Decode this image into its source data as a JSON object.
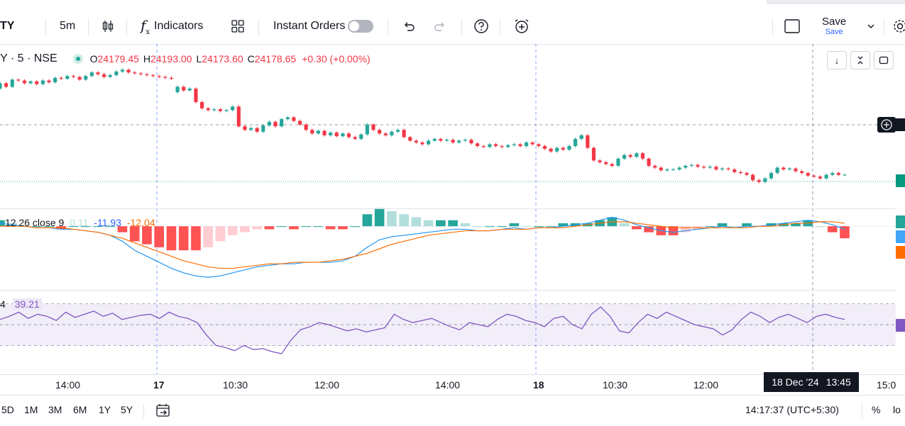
{
  "toolbar": {
    "symbol": "TY",
    "interval": "5m",
    "indicators": "Indicators",
    "instant_orders": "Instant Orders",
    "save": "Save",
    "save_sub": "Save"
  },
  "legend": {
    "symbol": "Y · 5 · NSE",
    "o_lbl": "O",
    "o_val": "24179.45",
    "h_lbl": "H",
    "h_val": "24193.00",
    "l_lbl": "L",
    "l_val": "24173.60",
    "c_lbl": "C",
    "c_val": "24178.65",
    "change": "+0.30 (+0.00%)"
  },
  "macd_legend": {
    "label": "12 26 close 9",
    "hist": "0.11",
    "macd": "-11.93",
    "signal": "-12.04"
  },
  "rsi_legend": {
    "prefix": "4",
    "value": "39.21"
  },
  "xaxis": {
    "labels": [
      "14:00",
      "17",
      "10:30",
      "12:00",
      "14:00",
      "18",
      "10:30",
      "12:00"
    ],
    "cursor_label": "18 Dec '24",
    "cursor_time": "13:45",
    "right_label": "15:0"
  },
  "bottom": {
    "ranges": [
      "5D",
      "1M",
      "3M",
      "6M",
      "1Y",
      "5Y"
    ],
    "clock": "14:17:37 (UTC+5:30)",
    "pct": "%",
    "log": "lo"
  },
  "colors": {
    "up": "#26a69a",
    "down": "#f23645",
    "macd": "#2962ff",
    "signal": "#ff6d00",
    "rsi": "#7e57c2"
  },
  "chart_data": {
    "type": "candlestick",
    "price": {
      "series": [
        {
          "o": 24170,
          "c": 24176
        },
        {
          "o": 24176,
          "c": 24172
        },
        {
          "o": 24172,
          "c": 24180
        },
        {
          "o": 24180,
          "c": 24179
        },
        {
          "o": 24179,
          "c": 24176
        },
        {
          "o": 24176,
          "c": 24178
        },
        {
          "o": 24178,
          "c": 24175
        },
        {
          "o": 24175,
          "c": 24179
        },
        {
          "o": 24179,
          "c": 24177
        },
        {
          "o": 24177,
          "c": 24182
        },
        {
          "o": 24182,
          "c": 24181
        },
        {
          "o": 24181,
          "c": 24184
        },
        {
          "o": 24184,
          "c": 24183
        },
        {
          "o": 24183,
          "c": 24180
        },
        {
          "o": 24180,
          "c": 24184
        },
        {
          "o": 24184,
          "c": 24188
        },
        {
          "o": 24188,
          "c": 24186
        },
        {
          "o": 24186,
          "c": 24183
        },
        {
          "o": 24183,
          "c": 24185
        },
        {
          "o": 24185,
          "c": 24189
        },
        {
          "o": 24189,
          "c": 24191
        },
        {
          "o": 24191,
          "c": 24188
        },
        {
          "o": 24188,
          "c": 24187
        },
        {
          "o": 24187,
          "c": 24186
        },
        {
          "o": 24186,
          "c": 24185
        },
        {
          "o": 24185,
          "c": 24184
        },
        {
          "o": 24184,
          "c": 24183
        },
        {
          "o": 24183,
          "c": 24182
        },
        {
          "o": 24182,
          "c": 24181
        },
        {
          "o": 24166,
          "c": 24172
        },
        {
          "o": 24172,
          "c": 24168
        },
        {
          "o": 24168,
          "c": 24170
        },
        {
          "o": 24170,
          "c": 24155
        },
        {
          "o": 24155,
          "c": 24148
        },
        {
          "o": 24148,
          "c": 24146
        },
        {
          "o": 24146,
          "c": 24147
        },
        {
          "o": 24147,
          "c": 24145
        },
        {
          "o": 24145,
          "c": 24146
        },
        {
          "o": 24146,
          "c": 24150
        },
        {
          "o": 24150,
          "c": 24128
        },
        {
          "o": 24128,
          "c": 24124
        },
        {
          "o": 24124,
          "c": 24126
        },
        {
          "o": 24126,
          "c": 24122
        },
        {
          "o": 24122,
          "c": 24129
        },
        {
          "o": 24129,
          "c": 24133
        },
        {
          "o": 24133,
          "c": 24128
        },
        {
          "o": 24128,
          "c": 24136
        },
        {
          "o": 24136,
          "c": 24138
        },
        {
          "o": 24138,
          "c": 24134
        },
        {
          "o": 24134,
          "c": 24130
        },
        {
          "o": 24130,
          "c": 24124
        },
        {
          "o": 24124,
          "c": 24120
        },
        {
          "o": 24120,
          "c": 24123
        },
        {
          "o": 24123,
          "c": 24118
        },
        {
          "o": 24118,
          "c": 24121
        },
        {
          "o": 24121,
          "c": 24117
        },
        {
          "o": 24117,
          "c": 24120
        },
        {
          "o": 24120,
          "c": 24116
        },
        {
          "o": 24116,
          "c": 24114
        },
        {
          "o": 24114,
          "c": 24119
        },
        {
          "o": 24119,
          "c": 24130
        },
        {
          "o": 24130,
          "c": 24124
        },
        {
          "o": 24124,
          "c": 24120
        },
        {
          "o": 24120,
          "c": 24118
        },
        {
          "o": 24118,
          "c": 24122
        },
        {
          "o": 24122,
          "c": 24124
        },
        {
          "o": 24124,
          "c": 24116
        },
        {
          "o": 24116,
          "c": 24112
        },
        {
          "o": 24112,
          "c": 24110
        },
        {
          "o": 24110,
          "c": 24108
        },
        {
          "o": 24108,
          "c": 24112
        },
        {
          "o": 24112,
          "c": 24114
        },
        {
          "o": 24114,
          "c": 24112
        },
        {
          "o": 24112,
          "c": 24113
        },
        {
          "o": 24113,
          "c": 24110
        },
        {
          "o": 24110,
          "c": 24112
        },
        {
          "o": 24112,
          "c": 24113
        },
        {
          "o": 24113,
          "c": 24109
        },
        {
          "o": 24109,
          "c": 24106
        },
        {
          "o": 24106,
          "c": 24105
        },
        {
          "o": 24105,
          "c": 24108
        },
        {
          "o": 24108,
          "c": 24106
        },
        {
          "o": 24106,
          "c": 24105
        },
        {
          "o": 24105,
          "c": 24107
        },
        {
          "o": 24107,
          "c": 24108
        },
        {
          "o": 24108,
          "c": 24106
        },
        {
          "o": 24106,
          "c": 24110
        },
        {
          "o": 24110,
          "c": 24108
        },
        {
          "o": 24108,
          "c": 24106
        },
        {
          "o": 24106,
          "c": 24103
        },
        {
          "o": 24103,
          "c": 24100
        },
        {
          "o": 24100,
          "c": 24104
        },
        {
          "o": 24104,
          "c": 24102
        },
        {
          "o": 24102,
          "c": 24106
        },
        {
          "o": 24106,
          "c": 24114
        },
        {
          "o": 24114,
          "c": 24118
        },
        {
          "o": 24118,
          "c": 24104
        },
        {
          "o": 24104,
          "c": 24090
        },
        {
          "o": 24090,
          "c": 24088
        },
        {
          "o": 24088,
          "c": 24086
        },
        {
          "o": 24086,
          "c": 24084
        },
        {
          "o": 24084,
          "c": 24092
        },
        {
          "o": 24092,
          "c": 24096
        },
        {
          "o": 24096,
          "c": 24094
        },
        {
          "o": 24094,
          "c": 24098
        },
        {
          "o": 24098,
          "c": 24092
        },
        {
          "o": 24092,
          "c": 24084
        },
        {
          "o": 24084,
          "c": 24082
        },
        {
          "o": 24082,
          "c": 24079
        },
        {
          "o": 24079,
          "c": 24080
        },
        {
          "o": 24080,
          "c": 24080
        },
        {
          "o": 24080,
          "c": 24082
        },
        {
          "o": 24082,
          "c": 24084
        },
        {
          "o": 24084,
          "c": 24085
        },
        {
          "o": 24085,
          "c": 24083
        },
        {
          "o": 24083,
          "c": 24082
        },
        {
          "o": 24082,
          "c": 24083
        },
        {
          "o": 24083,
          "c": 24080
        },
        {
          "o": 24080,
          "c": 24081
        },
        {
          "o": 24081,
          "c": 24080
        },
        {
          "o": 24080,
          "c": 24077
        },
        {
          "o": 24077,
          "c": 24076
        },
        {
          "o": 24076,
          "c": 24074
        },
        {
          "o": 24074,
          "c": 24068
        },
        {
          "o": 24068,
          "c": 24066
        },
        {
          "o": 24066,
          "c": 24070
        },
        {
          "o": 24070,
          "c": 24076
        },
        {
          "o": 24076,
          "c": 24082
        },
        {
          "o": 24082,
          "c": 24080
        },
        {
          "o": 24080,
          "c": 24081
        },
        {
          "o": 24081,
          "c": 24078
        },
        {
          "o": 24078,
          "c": 24076
        },
        {
          "o": 24076,
          "c": 24073
        },
        {
          "o": 24073,
          "c": 24072
        },
        {
          "o": 24072,
          "c": 24070
        },
        {
          "o": 24070,
          "c": 24074
        },
        {
          "o": 24074,
          "c": 24076
        },
        {
          "o": 24076,
          "c": 24074
        },
        {
          "o": 24074,
          "c": 24074
        }
      ],
      "ylim": [
        24050,
        24200
      ]
    },
    "macd": {
      "macd": [
        2,
        1,
        0,
        -1,
        -1,
        -2,
        -2,
        -3,
        -4,
        -6,
        -10,
        -16,
        -20,
        -24,
        -28,
        -31,
        -33,
        -34,
        -33,
        -31,
        -29,
        -27,
        -26,
        -25,
        -25,
        -24,
        -24,
        -24,
        -23,
        -20,
        -14,
        -9,
        -7,
        -6,
        -5,
        -4,
        -3,
        -2,
        -2,
        -3,
        -3,
        -2,
        -1,
        -2,
        -1,
        -1,
        0,
        1,
        2,
        4,
        6,
        4,
        1,
        -1,
        -3,
        -4,
        -3,
        -2,
        -1,
        0,
        -1,
        0,
        0,
        1,
        2,
        3,
        4,
        3,
        1,
        -2
      ],
      "signal": [
        0,
        0,
        0,
        -1,
        -1,
        -1,
        -2,
        -3,
        -4,
        -6,
        -8,
        -11,
        -14,
        -17,
        -20,
        -23,
        -25,
        -27,
        -28,
        -28,
        -27,
        -26,
        -25,
        -25,
        -24,
        -24,
        -24,
        -23,
        -22,
        -20,
        -18,
        -15,
        -12,
        -10,
        -8,
        -6,
        -5,
        -4,
        -3,
        -3,
        -3,
        -2,
        -2,
        -2,
        -1,
        -1,
        -1,
        0,
        1,
        2,
        3,
        3,
        2,
        1,
        0,
        -1,
        -1,
        -1,
        -1,
        -1,
        -1,
        -1,
        0,
        0,
        1,
        2,
        2,
        3,
        3,
        2
      ],
      "ylim": [
        -40,
        10
      ]
    },
    "rsi": {
      "values": [
        55,
        58,
        62,
        56,
        60,
        58,
        54,
        62,
        57,
        60,
        63,
        58,
        61,
        55,
        57,
        59,
        60,
        56,
        62,
        58,
        56,
        52,
        40,
        30,
        28,
        25,
        30,
        26,
        27,
        24,
        22,
        35,
        45,
        48,
        52,
        50,
        47,
        44,
        46,
        43,
        45,
        47,
        60,
        55,
        52,
        54,
        56,
        52,
        48,
        45,
        52,
        50,
        48,
        55,
        60,
        58,
        54,
        52,
        48,
        56,
        58,
        50,
        46,
        60,
        67,
        58,
        44,
        42,
        52,
        60,
        56,
        62,
        58,
        54,
        50,
        48,
        46,
        40,
        45,
        55,
        62,
        58,
        52,
        57,
        60,
        56,
        52,
        58,
        60,
        57,
        55
      ]
    }
  }
}
